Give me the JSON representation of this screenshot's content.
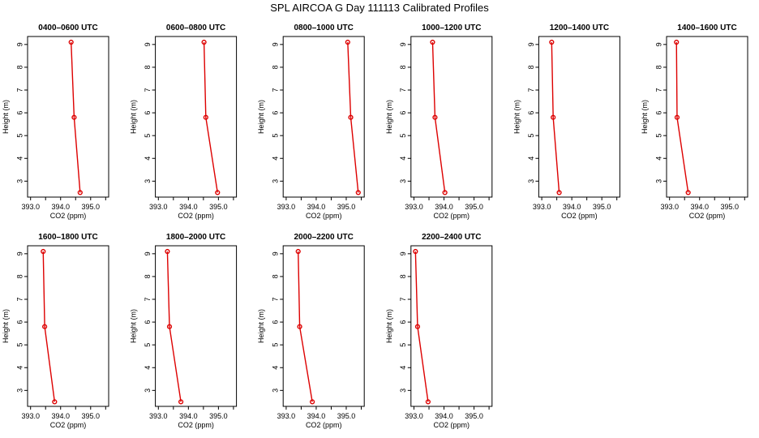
{
  "title": "SPL AIRCOA G  Day 111113  Calibrated Profiles",
  "chart_data": [
    {
      "type": "line",
      "title": "0400–0600 UTC",
      "xlabel": "CO2 (ppm)",
      "ylabel": "Height (m)",
      "xlim": [
        392.9,
        395.6
      ],
      "ylim": [
        2.3,
        9.35
      ],
      "xticks": [
        "393.0",
        "394.0",
        "395.0"
      ],
      "xticks_minor": [
        393.5,
        394.5,
        395.5
      ],
      "yticks": [
        "3",
        "4",
        "5",
        "6",
        "7",
        "8",
        "9"
      ],
      "series": [
        {
          "x": [
            394.65,
            394.45,
            394.35
          ],
          "y": [
            2.5,
            5.8,
            9.1
          ]
        }
      ],
      "color": "#dd0000",
      "grid": false
    },
    {
      "type": "line",
      "title": "0600–0800 UTC",
      "xlabel": "CO2 (ppm)",
      "ylabel": "Height (m)",
      "xlim": [
        392.9,
        395.6
      ],
      "ylim": [
        2.3,
        9.35
      ],
      "xticks": [
        "393.0",
        "394.0",
        "395.0"
      ],
      "xticks_minor": [
        393.5,
        394.5,
        395.5
      ],
      "yticks": [
        "3",
        "4",
        "5",
        "6",
        "7",
        "8",
        "9"
      ],
      "series": [
        {
          "x": [
            394.97,
            394.58,
            394.52
          ],
          "y": [
            2.5,
            5.8,
            9.1
          ]
        }
      ],
      "color": "#dd0000",
      "grid": false
    },
    {
      "type": "line",
      "title": "0800–1000 UTC",
      "xlabel": "CO2 (ppm)",
      "ylabel": "Height (m)",
      "xlim": [
        392.9,
        395.6
      ],
      "ylim": [
        2.3,
        9.35
      ],
      "xticks": [
        "393.0",
        "394.0",
        "395.0"
      ],
      "xticks_minor": [
        393.5,
        394.5,
        395.5
      ],
      "yticks": [
        "3",
        "4",
        "5",
        "6",
        "7",
        "8",
        "9"
      ],
      "series": [
        {
          "x": [
            395.4,
            395.15,
            395.05
          ],
          "y": [
            2.5,
            5.8,
            9.1
          ]
        }
      ],
      "color": "#dd0000",
      "grid": false
    },
    {
      "type": "line",
      "title": "1000–1200 UTC",
      "xlabel": "CO2 (ppm)",
      "ylabel": "Height (m)",
      "xlim": [
        392.9,
        395.6
      ],
      "ylim": [
        2.3,
        9.35
      ],
      "xticks": [
        "393.0",
        "394.0",
        "395.0"
      ],
      "xticks_minor": [
        393.5,
        394.5,
        395.5
      ],
      "yticks": [
        "3",
        "4",
        "5",
        "6",
        "7",
        "8",
        "9"
      ],
      "series": [
        {
          "x": [
            394.03,
            393.7,
            393.62
          ],
          "y": [
            2.5,
            5.8,
            9.1
          ]
        }
      ],
      "color": "#dd0000",
      "grid": false
    },
    {
      "type": "line",
      "title": "1200–1400 UTC",
      "xlabel": "CO2 (ppm)",
      "ylabel": "Height (m)",
      "xlim": [
        392.9,
        395.6
      ],
      "ylim": [
        2.3,
        9.35
      ],
      "xticks": [
        "393.0",
        "394.0",
        "395.0"
      ],
      "xticks_minor": [
        393.5,
        394.5,
        395.5
      ],
      "yticks": [
        "3",
        "4",
        "5",
        "6",
        "7",
        "8",
        "9"
      ],
      "series": [
        {
          "x": [
            393.58,
            393.38,
            393.33
          ],
          "y": [
            2.5,
            5.8,
            9.1
          ]
        }
      ],
      "color": "#dd0000",
      "grid": false
    },
    {
      "type": "line",
      "title": "1400–1600 UTC",
      "xlabel": "CO2 (ppm)",
      "ylabel": "Height (m)",
      "xlim": [
        392.9,
        395.6
      ],
      "ylim": [
        2.3,
        9.35
      ],
      "xticks": [
        "393.0",
        "394.0",
        "395.0"
      ],
      "xticks_minor": [
        393.5,
        394.5,
        395.5
      ],
      "yticks": [
        "3",
        "4",
        "5",
        "6",
        "7",
        "8",
        "9"
      ],
      "series": [
        {
          "x": [
            393.62,
            393.25,
            393.23
          ],
          "y": [
            2.5,
            5.8,
            9.1
          ]
        }
      ],
      "color": "#dd0000",
      "grid": false
    },
    {
      "type": "line",
      "title": "1600–1800 UTC",
      "xlabel": "CO2 (ppm)",
      "ylabel": "Height (m)",
      "xlim": [
        392.9,
        395.6
      ],
      "ylim": [
        2.3,
        9.35
      ],
      "xticks": [
        "393.0",
        "394.0",
        "395.0"
      ],
      "xticks_minor": [
        393.5,
        394.5,
        395.5
      ],
      "yticks": [
        "3",
        "4",
        "5",
        "6",
        "7",
        "8",
        "9"
      ],
      "series": [
        {
          "x": [
            393.8,
            393.47,
            393.42
          ],
          "y": [
            2.5,
            5.8,
            9.1
          ]
        }
      ],
      "color": "#dd0000",
      "grid": false
    },
    {
      "type": "line",
      "title": "1800–2000 UTC",
      "xlabel": "CO2 (ppm)",
      "ylabel": "Height (m)",
      "xlim": [
        392.9,
        395.6
      ],
      "ylim": [
        2.3,
        9.35
      ],
      "xticks": [
        "393.0",
        "394.0",
        "395.0"
      ],
      "xticks_minor": [
        393.5,
        394.5,
        395.5
      ],
      "yticks": [
        "3",
        "4",
        "5",
        "6",
        "7",
        "8",
        "9"
      ],
      "series": [
        {
          "x": [
            393.75,
            393.37,
            393.3
          ],
          "y": [
            2.5,
            5.8,
            9.1
          ]
        }
      ],
      "color": "#dd0000",
      "grid": false
    },
    {
      "type": "line",
      "title": "2000–2200 UTC",
      "xlabel": "CO2 (ppm)",
      "ylabel": "Height (m)",
      "xlim": [
        392.9,
        395.6
      ],
      "ylim": [
        2.3,
        9.35
      ],
      "xticks": [
        "393.0",
        "394.0",
        "395.0"
      ],
      "xticks_minor": [
        393.5,
        394.5,
        395.5
      ],
      "yticks": [
        "3",
        "4",
        "5",
        "6",
        "7",
        "8",
        "9"
      ],
      "series": [
        {
          "x": [
            393.87,
            393.45,
            393.4
          ],
          "y": [
            2.5,
            5.8,
            9.1
          ]
        }
      ],
      "color": "#dd0000",
      "grid": false
    },
    {
      "type": "line",
      "title": "2200–2400 UTC",
      "xlabel": "CO2 (ppm)",
      "ylabel": "Height (m)",
      "xlim": [
        392.9,
        395.6
      ],
      "ylim": [
        2.3,
        9.35
      ],
      "xticks": [
        "393.0",
        "394.0",
        "395.0"
      ],
      "xticks_minor": [
        393.5,
        394.5,
        395.5
      ],
      "yticks": [
        "3",
        "4",
        "5",
        "6",
        "7",
        "8",
        "9"
      ],
      "series": [
        {
          "x": [
            393.47,
            393.12,
            393.05
          ],
          "y": [
            2.5,
            5.8,
            9.1
          ]
        }
      ],
      "color": "#dd0000",
      "grid": false
    }
  ]
}
